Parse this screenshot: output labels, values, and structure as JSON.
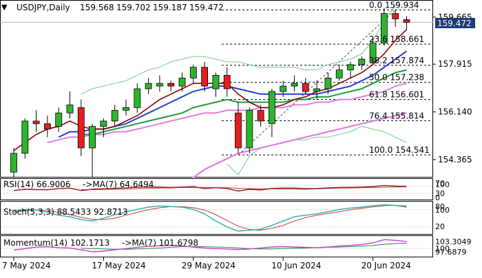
{
  "colors": {
    "bull": "#2db52d",
    "bear": "#e41f1f",
    "wick": "#000000",
    "ma_fast": "#8b0000",
    "ma_mid": "#1f3fd0",
    "ma_slow": "#1f9a3a",
    "ma_long": "#e27be2",
    "bband": "#77c88d",
    "fib": "#000000",
    "osc_main": "#2aa9a9",
    "osc_signal": "#c43a3a",
    "mom_main": "#c83ad6",
    "mom_signal": "#1f8a3a",
    "price_box": "#1e3a78",
    "grid": "#cfcfcf",
    "panel_border": "#000000"
  },
  "chart_data": {
    "type": "candlestick",
    "title": "USDJPY,Daily",
    "ohlc_text": [
      "159.568",
      "159.702",
      "159.187",
      "159.472"
    ],
    "current_price": "159.472",
    "menu_icon": "triangle-down-icon",
    "ylim": [
      153.75,
      160.25
    ],
    "price_ticks": [
      {
        "label": "159.665",
        "value": 159.665
      },
      {
        "label": "157.915",
        "value": 157.915
      },
      {
        "label": "156.140",
        "value": 156.14
      },
      {
        "label": "154.365",
        "value": 154.365
      }
    ],
    "x_labels": [
      {
        "label": "7 May 2024",
        "index": 0
      },
      {
        "label": "17 May 2024",
        "index": 8
      },
      {
        "label": "29 May 2024",
        "index": 16
      },
      {
        "label": "10 Jun 2024",
        "index": 24
      },
      {
        "label": "20 Jun 2024",
        "index": 32
      }
    ],
    "candles": [
      {
        "o": 153.9,
        "h": 154.8,
        "l": 153.7,
        "c": 154.6
      },
      {
        "o": 154.6,
        "h": 155.9,
        "l": 154.4,
        "c": 155.8
      },
      {
        "o": 155.8,
        "h": 156.2,
        "l": 155.4,
        "c": 155.7
      },
      {
        "o": 155.7,
        "h": 156.0,
        "l": 155.2,
        "c": 155.5
      },
      {
        "o": 155.6,
        "h": 156.3,
        "l": 155.4,
        "c": 156.1
      },
      {
        "o": 156.1,
        "h": 156.9,
        "l": 155.9,
        "c": 156.4
      },
      {
        "o": 156.3,
        "h": 156.6,
        "l": 154.5,
        "c": 154.8
      },
      {
        "o": 154.8,
        "h": 155.7,
        "l": 153.6,
        "c": 155.6
      },
      {
        "o": 155.6,
        "h": 155.9,
        "l": 155.2,
        "c": 155.8
      },
      {
        "o": 155.8,
        "h": 156.4,
        "l": 155.6,
        "c": 156.2
      },
      {
        "o": 156.2,
        "h": 156.6,
        "l": 156.0,
        "c": 156.3
      },
      {
        "o": 156.3,
        "h": 157.2,
        "l": 156.1,
        "c": 157.0
      },
      {
        "o": 157.0,
        "h": 157.4,
        "l": 156.8,
        "c": 157.2
      },
      {
        "o": 157.1,
        "h": 157.5,
        "l": 156.9,
        "c": 157.2
      },
      {
        "o": 157.2,
        "h": 157.3,
        "l": 156.9,
        "c": 157.1
      },
      {
        "o": 157.1,
        "h": 157.6,
        "l": 156.9,
        "c": 157.4
      },
      {
        "o": 157.4,
        "h": 157.9,
        "l": 157.2,
        "c": 157.8
      },
      {
        "o": 157.8,
        "h": 158.0,
        "l": 156.9,
        "c": 157.1
      },
      {
        "o": 157.0,
        "h": 157.6,
        "l": 156.7,
        "c": 157.5
      },
      {
        "o": 157.5,
        "h": 157.8,
        "l": 156.7,
        "c": 157.0
      },
      {
        "o": 156.1,
        "h": 156.5,
        "l": 154.6,
        "c": 154.8
      },
      {
        "o": 154.8,
        "h": 156.3,
        "l": 154.6,
        "c": 156.2
      },
      {
        "o": 156.2,
        "h": 156.4,
        "l": 155.6,
        "c": 155.8
      },
      {
        "o": 155.7,
        "h": 157.0,
        "l": 155.2,
        "c": 156.9
      },
      {
        "o": 156.9,
        "h": 157.3,
        "l": 156.7,
        "c": 157.1
      },
      {
        "o": 157.1,
        "h": 157.5,
        "l": 156.9,
        "c": 157.2
      },
      {
        "o": 157.2,
        "h": 157.4,
        "l": 156.8,
        "c": 156.9
      },
      {
        "o": 156.9,
        "h": 157.3,
        "l": 156.6,
        "c": 157.0
      },
      {
        "o": 157.0,
        "h": 157.6,
        "l": 156.8,
        "c": 157.4
      },
      {
        "o": 157.4,
        "h": 157.9,
        "l": 157.3,
        "c": 157.7
      },
      {
        "o": 157.7,
        "h": 158.0,
        "l": 157.4,
        "c": 157.9
      },
      {
        "o": 157.9,
        "h": 158.2,
        "l": 157.7,
        "c": 158.1
      },
      {
        "o": 158.0,
        "h": 158.9,
        "l": 157.9,
        "c": 158.7
      },
      {
        "o": 158.7,
        "h": 160.0,
        "l": 158.6,
        "c": 159.8
      },
      {
        "o": 159.8,
        "h": 159.95,
        "l": 159.3,
        "c": 159.6
      },
      {
        "o": 159.57,
        "h": 159.7,
        "l": 159.19,
        "c": 159.47
      }
    ],
    "fibonacci": [
      {
        "label": "0.0 159.934",
        "value": 159.934
      },
      {
        "label": "23.6 158.661",
        "value": 158.661
      },
      {
        "label": "38.2 157.874",
        "value": 157.874
      },
      {
        "label": "50.0 157.238",
        "value": 157.238
      },
      {
        "label": "61.8 156.601",
        "value": 156.601
      },
      {
        "label": "76.4 155.814",
        "value": 155.814
      },
      {
        "label": "100.0 154.541",
        "value": 154.541
      }
    ],
    "ma_fast": [
      154.7,
      155.0,
      155.3,
      155.5,
      155.6,
      155.8,
      155.6,
      155.5,
      155.5,
      155.6,
      155.8,
      156.0,
      156.3,
      156.6,
      156.8,
      157.0,
      157.2,
      157.2,
      157.2,
      157.2,
      156.8,
      156.5,
      156.3,
      156.3,
      156.4,
      156.6,
      156.7,
      156.9,
      157.0,
      157.2,
      157.4,
      157.6,
      157.9,
      158.3,
      158.8,
      159.2
    ],
    "ma_mid": [
      null,
      null,
      null,
      null,
      155.2,
      155.4,
      155.4,
      155.5,
      155.5,
      155.6,
      155.7,
      155.9,
      156.1,
      156.3,
      156.5,
      156.7,
      156.9,
      157.0,
      157.1,
      157.1,
      157.0,
      156.9,
      156.8,
      156.8,
      156.8,
      156.8,
      156.8,
      156.8,
      156.9,
      157.0,
      157.1,
      157.3,
      157.5,
      157.8,
      158.1,
      158.4
    ],
    "ma_slow": [
      null,
      null,
      null,
      null,
      null,
      null,
      155.3,
      155.3,
      155.4,
      155.5,
      155.6,
      155.7,
      155.8,
      155.9,
      156.0,
      156.1,
      156.3,
      156.4,
      156.5,
      156.6,
      156.5,
      156.5,
      156.5,
      156.5,
      156.5,
      156.6,
      156.6,
      156.7,
      156.7,
      156.8,
      156.9,
      157.0,
      157.2,
      157.4,
      157.6,
      157.7
    ],
    "ma_long": [
      null,
      null,
      null,
      155.0,
      155.1,
      155.2,
      155.2,
      155.3,
      155.3,
      155.4,
      155.4,
      155.5,
      155.6,
      155.7,
      155.8,
      155.9,
      156.0,
      156.1,
      156.1,
      156.2,
      156.2,
      156.2,
      156.3,
      156.3,
      156.3,
      156.4,
      156.4,
      156.5,
      156.5,
      156.6,
      156.6,
      156.7,
      156.8,
      156.9,
      157.1,
      157.2
    ],
    "ma_200": [
      null,
      null,
      null,
      null,
      null,
      null,
      null,
      null,
      null,
      null,
      null,
      null,
      null,
      null,
      null,
      153.5,
      153.7,
      154.0,
      154.2,
      154.4,
      154.6,
      154.7,
      154.8,
      154.9,
      155.0,
      155.1,
      155.2,
      155.3,
      155.4,
      155.5,
      155.6,
      155.7,
      155.8,
      155.9,
      156.0,
      156.1
    ],
    "bb_upper": [
      null,
      null,
      null,
      null,
      null,
      null,
      156.8,
      157.0,
      157.1,
      157.2,
      157.3,
      157.5,
      157.7,
      157.8,
      158.0,
      158.1,
      158.2,
      158.2,
      158.1,
      158.0,
      158.0,
      157.9,
      157.8,
      157.8,
      157.8,
      157.8,
      157.7,
      157.7,
      157.9,
      158.0,
      158.1,
      158.3,
      158.8,
      159.5,
      160.1,
      160.6
    ],
    "bb_lower": [
      null,
      null,
      null,
      null,
      null,
      null,
      null,
      null,
      null,
      null,
      null,
      null,
      null,
      null,
      null,
      null,
      null,
      null,
      null,
      154.2,
      153.8,
      154.5,
      154.8,
      154.9,
      155.0,
      155.1,
      155.1,
      155.2,
      155.2,
      155.3,
      155.4,
      155.6,
      155.5,
      155.4,
      155.2,
      155.0
    ],
    "indicators": {
      "rsi": {
        "label": "RSI(14) 66.9006",
        "signal_label": "->MA(7) 64.6494",
        "scale": [
          "70",
          "100",
          "30",
          "0"
        ],
        "values": [
          45,
          52,
          50,
          49,
          55,
          58,
          45,
          52,
          54,
          57,
          59,
          63,
          64,
          63,
          61,
          63,
          66,
          55,
          60,
          56,
          42,
          52,
          48,
          56,
          58,
          58,
          55,
          56,
          59,
          61,
          62,
          63,
          66,
          72,
          69,
          67
        ],
        "signal": [
          null,
          null,
          null,
          null,
          null,
          null,
          50,
          50,
          51,
          52,
          53,
          55,
          57,
          58,
          59,
          61,
          62,
          61,
          60,
          60,
          57,
          55,
          54,
          54,
          53,
          53,
          52,
          54,
          56,
          58,
          59,
          60,
          61,
          63,
          64,
          65
        ]
      },
      "stoch": {
        "label": "Stoch(5,3,3) 88.5433 92.8713",
        "scale": [
          "80",
          "100",
          "20"
        ],
        "values": [
          75,
          80,
          78,
          70,
          60,
          55,
          45,
          40,
          50,
          62,
          72,
          80,
          88,
          92,
          90,
          88,
          80,
          65,
          40,
          20,
          5,
          8,
          12,
          25,
          40,
          55,
          60,
          65,
          72,
          80,
          85,
          88,
          93,
          96,
          94,
          88
        ],
        "signal": [
          70,
          76,
          78,
          76,
          70,
          62,
          53,
          46,
          45,
          50,
          60,
          70,
          79,
          86,
          90,
          90,
          86,
          78,
          62,
          42,
          22,
          11,
          8,
          15,
          25,
          40,
          52,
          60,
          66,
          72,
          79,
          84,
          89,
          93,
          94,
          92
        ]
      },
      "mom": {
        "label": "Momentum(14) 102.1713",
        "signal_label": "->MA(7) 101.6798",
        "scale": [
          "103.3049",
          "100",
          "97.6879"
        ],
        "values": [
          99.5,
          100.0,
          100.5,
          100.6,
          100.3,
          100.2,
          99.6,
          99.0,
          99.2,
          99.6,
          100.0,
          100.4,
          100.7,
          100.9,
          101.0,
          100.8,
          100.5,
          100.2,
          100.0,
          99.9,
          99.7,
          99.9,
          100.2,
          100.5,
          100.6,
          100.5,
          100.4,
          100.3,
          100.5,
          100.8,
          101.0,
          101.3,
          101.8,
          102.8,
          102.6,
          102.2
        ],
        "signal": [
          null,
          null,
          null,
          null,
          null,
          null,
          100.1,
          100.0,
          99.9,
          99.8,
          99.8,
          99.9,
          100.0,
          100.2,
          100.4,
          100.6,
          100.6,
          100.6,
          100.5,
          100.4,
          100.2,
          100.0,
          99.9,
          99.9,
          100.0,
          100.1,
          100.2,
          100.3,
          100.4,
          100.5,
          100.6,
          100.8,
          101.0,
          101.3,
          101.6,
          101.7
        ]
      }
    }
  }
}
